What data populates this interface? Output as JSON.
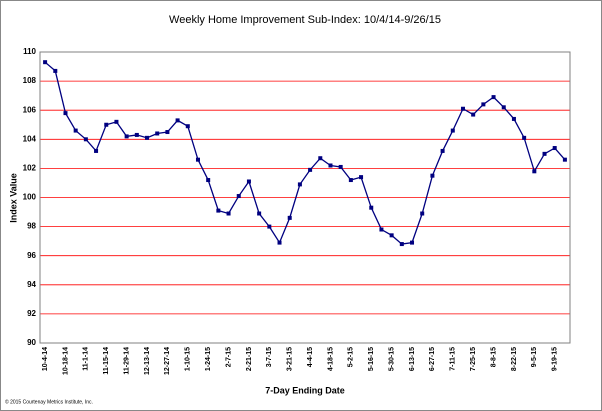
{
  "chart_data": {
    "type": "line",
    "title": "Weekly Home Improvement Sub-Index: 10/4/14-9/26/15",
    "x_label": "7-Day Ending Date",
    "y_label": "Index Value",
    "footnote": "© 2015 Courtenay Metrics Institute, Inc.",
    "categories": [
      "10-4-14",
      null,
      "10-18-14",
      null,
      "11-1-14",
      null,
      "11-15-14",
      null,
      "11-29-14",
      null,
      "12-13-14",
      null,
      "12-27-14",
      null,
      "1-10-15",
      null,
      "1-24-15",
      null,
      "2-7-15",
      null,
      "2-21-15",
      null,
      "3-7-15",
      null,
      "3-21-15",
      null,
      "4-4-15",
      null,
      "4-18-15",
      null,
      "5-2-15",
      null,
      "5-16-15",
      null,
      "5-30-15",
      null,
      "6-13-15",
      null,
      "6-27-15",
      null,
      "7-11-15",
      null,
      "7-25-15",
      null,
      "8-8-15",
      null,
      "8-22-15",
      null,
      "9-5-15",
      null,
      "9-19-15",
      null
    ],
    "values": [
      109.3,
      108.7,
      105.8,
      104.6,
      104.0,
      103.2,
      105.0,
      105.2,
      104.2,
      104.3,
      104.1,
      104.4,
      104.5,
      105.3,
      104.9,
      102.6,
      101.2,
      99.1,
      98.9,
      100.1,
      101.1,
      98.9,
      98.0,
      96.9,
      98.6,
      100.9,
      101.9,
      102.7,
      102.2,
      102.1,
      101.2,
      101.4,
      99.3,
      97.8,
      97.4,
      96.8,
      96.9,
      98.9,
      101.5,
      103.2,
      104.6,
      106.1,
      105.7,
      106.4,
      106.9,
      106.2,
      105.4,
      104.1,
      101.8,
      103.0,
      103.4,
      102.6
    ],
    "color": "#000080",
    "grid_color": "#ff0000",
    "ylim": [
      90,
      110
    ],
    "yticks": [
      90,
      92,
      94,
      96,
      98,
      100,
      102,
      104,
      106,
      108,
      110
    ],
    "grid": true
  }
}
